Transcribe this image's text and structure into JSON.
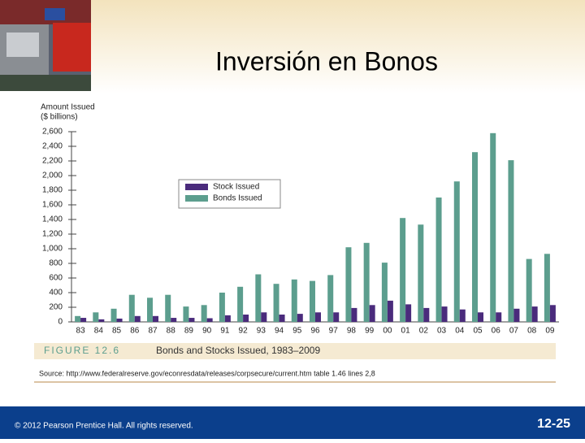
{
  "chart_data": {
    "type": "bar",
    "title": "Inversión en Bonos",
    "y_label": [
      "Amount Issued",
      "($ billions)"
    ],
    "categories": [
      "83",
      "84",
      "85",
      "86",
      "87",
      "88",
      "89",
      "90",
      "91",
      "92",
      "93",
      "94",
      "95",
      "96",
      "97",
      "98",
      "99",
      "00",
      "01",
      "02",
      "03",
      "04",
      "05",
      "06",
      "07",
      "08",
      "09"
    ],
    "series": [
      {
        "name": "Stock Issued",
        "color": "#4a2b7c",
        "values": [
          55,
          35,
          45,
          80,
          80,
          55,
          55,
          50,
          90,
          100,
          130,
          100,
          110,
          130,
          130,
          190,
          230,
          290,
          240,
          190,
          210,
          170,
          130,
          130,
          180,
          210,
          230
        ]
      },
      {
        "name": "Bonds Issued",
        "color": "#5c9e8e",
        "values": [
          80,
          130,
          180,
          370,
          330,
          370,
          210,
          230,
          400,
          480,
          650,
          520,
          580,
          560,
          640,
          1020,
          1080,
          810,
          1420,
          1330,
          1700,
          1920,
          2320,
          2580,
          2210,
          860,
          930
        ]
      }
    ],
    "ylim": [
      0,
      2600
    ],
    "yticks": [
      0,
      200,
      400,
      600,
      800,
      {
        "value": 1000,
        "label": "1,000"
      },
      {
        "value": 1200,
        "label": "1,200"
      },
      {
        "value": 1400,
        "label": "1,400"
      },
      {
        "value": 1600,
        "label": "1,600"
      },
      {
        "value": 1800,
        "label": "1,800"
      },
      {
        "value": 2000,
        "label": "2,000"
      },
      {
        "value": 2200,
        "label": "2,200"
      },
      {
        "value": 2400,
        "label": "2,400"
      },
      {
        "value": 2600,
        "label": "2,600"
      }
    ],
    "grid": false,
    "figure_label": "FIGURE 12.6",
    "figure_caption": "Bonds and Stocks Issued, 1983–2009",
    "source": "Source: http://www.federalreserve.gov/econresdata/releases/corpsecure/current.htm table 1.46 lines 2,8"
  },
  "footer": {
    "copyright": "© 2012 Pearson Prentice Hall. All rights reserved.",
    "page": "12-25"
  }
}
